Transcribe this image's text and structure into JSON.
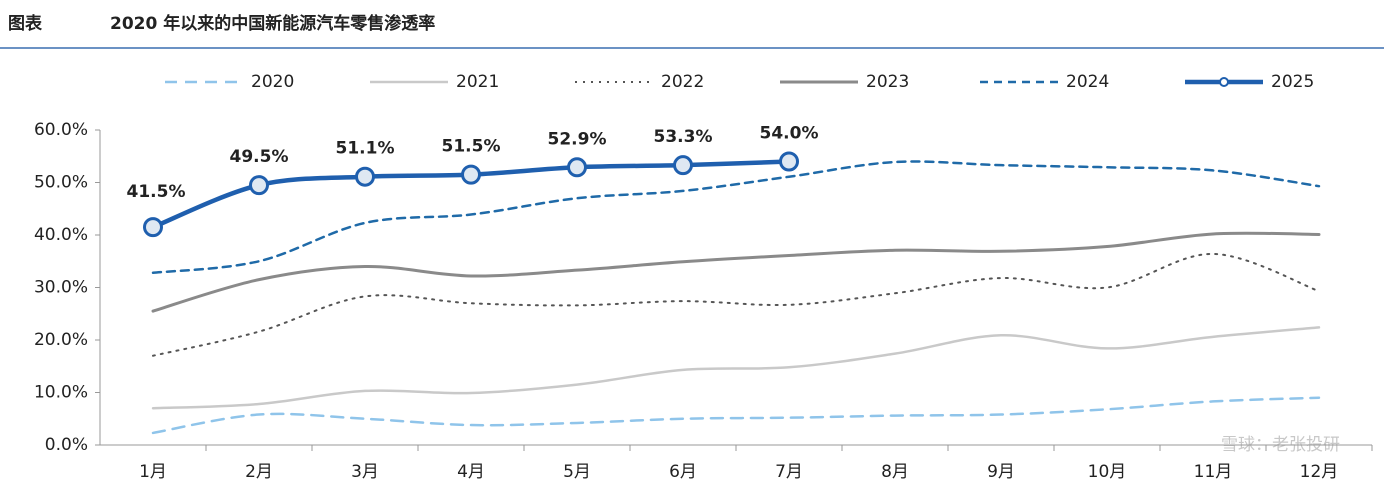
{
  "chart_data": {
    "type": "line",
    "label": "图表",
    "title": "2020 年以来的中国新能源汽车零售渗透率",
    "watermark": "雪球：老张投研",
    "categories": [
      "1月",
      "2月",
      "3月",
      "4月",
      "5月",
      "6月",
      "7月",
      "8月",
      "9月",
      "10月",
      "11月",
      "12月"
    ],
    "ylim": [
      0,
      60
    ],
    "yticks": [
      {
        "value": 0,
        "label": "0.0%"
      },
      {
        "value": 10,
        "label": "10.0%"
      },
      {
        "value": 20,
        "label": "20.0%"
      },
      {
        "value": 30,
        "label": "30.0%"
      },
      {
        "value": 40,
        "label": "40.0%"
      },
      {
        "value": 50,
        "label": "50.0%"
      },
      {
        "value": 60,
        "label": "60.0%"
      }
    ],
    "series": [
      {
        "name": "2020",
        "color": "#8fc4ea",
        "dash": "12 8",
        "width": 2.5,
        "values": [
          2.3,
          5.8,
          5.0,
          3.8,
          4.2,
          5.0,
          5.2,
          5.6,
          5.8,
          6.8,
          8.3,
          9.0
        ]
      },
      {
        "name": "2021",
        "color": "#c9c9c9",
        "dash": "",
        "width": 2.5,
        "values": [
          7.0,
          7.8,
          10.3,
          9.9,
          11.5,
          14.3,
          14.8,
          17.4,
          20.9,
          18.4,
          20.6,
          22.4
        ]
      },
      {
        "name": "2022",
        "color": "#555555",
        "dash": "2 6",
        "width": 2,
        "values": [
          17.0,
          21.6,
          28.3,
          27.0,
          26.6,
          27.4,
          26.7,
          28.9,
          31.8,
          30.0,
          36.4,
          29.3
        ]
      },
      {
        "name": "2023",
        "color": "#8a8a8a",
        "dash": "",
        "width": 3,
        "values": [
          25.5,
          31.5,
          34.0,
          32.2,
          33.3,
          34.9,
          36.1,
          37.1,
          36.9,
          37.8,
          40.2,
          40.1
        ]
      },
      {
        "name": "2024",
        "color": "#1f6aa8",
        "dash": "8 6",
        "width": 2.5,
        "values": [
          32.8,
          35.0,
          42.3,
          43.9,
          47.0,
          48.4,
          51.1,
          53.9,
          53.3,
          52.9,
          52.3,
          49.3
        ]
      },
      {
        "name": "2025",
        "color": "#1f5fae",
        "dash": "",
        "width": 4.5,
        "markers": true,
        "values": [
          41.5,
          49.5,
          51.1,
          51.5,
          52.9,
          53.3,
          54.0,
          null,
          null,
          null,
          null,
          null
        ],
        "value_labels": [
          "41.5%",
          "49.5%",
          "51.1%",
          "51.5%",
          "52.9%",
          "53.3%",
          "54.0%",
          null,
          null,
          null,
          null,
          null
        ]
      }
    ]
  }
}
